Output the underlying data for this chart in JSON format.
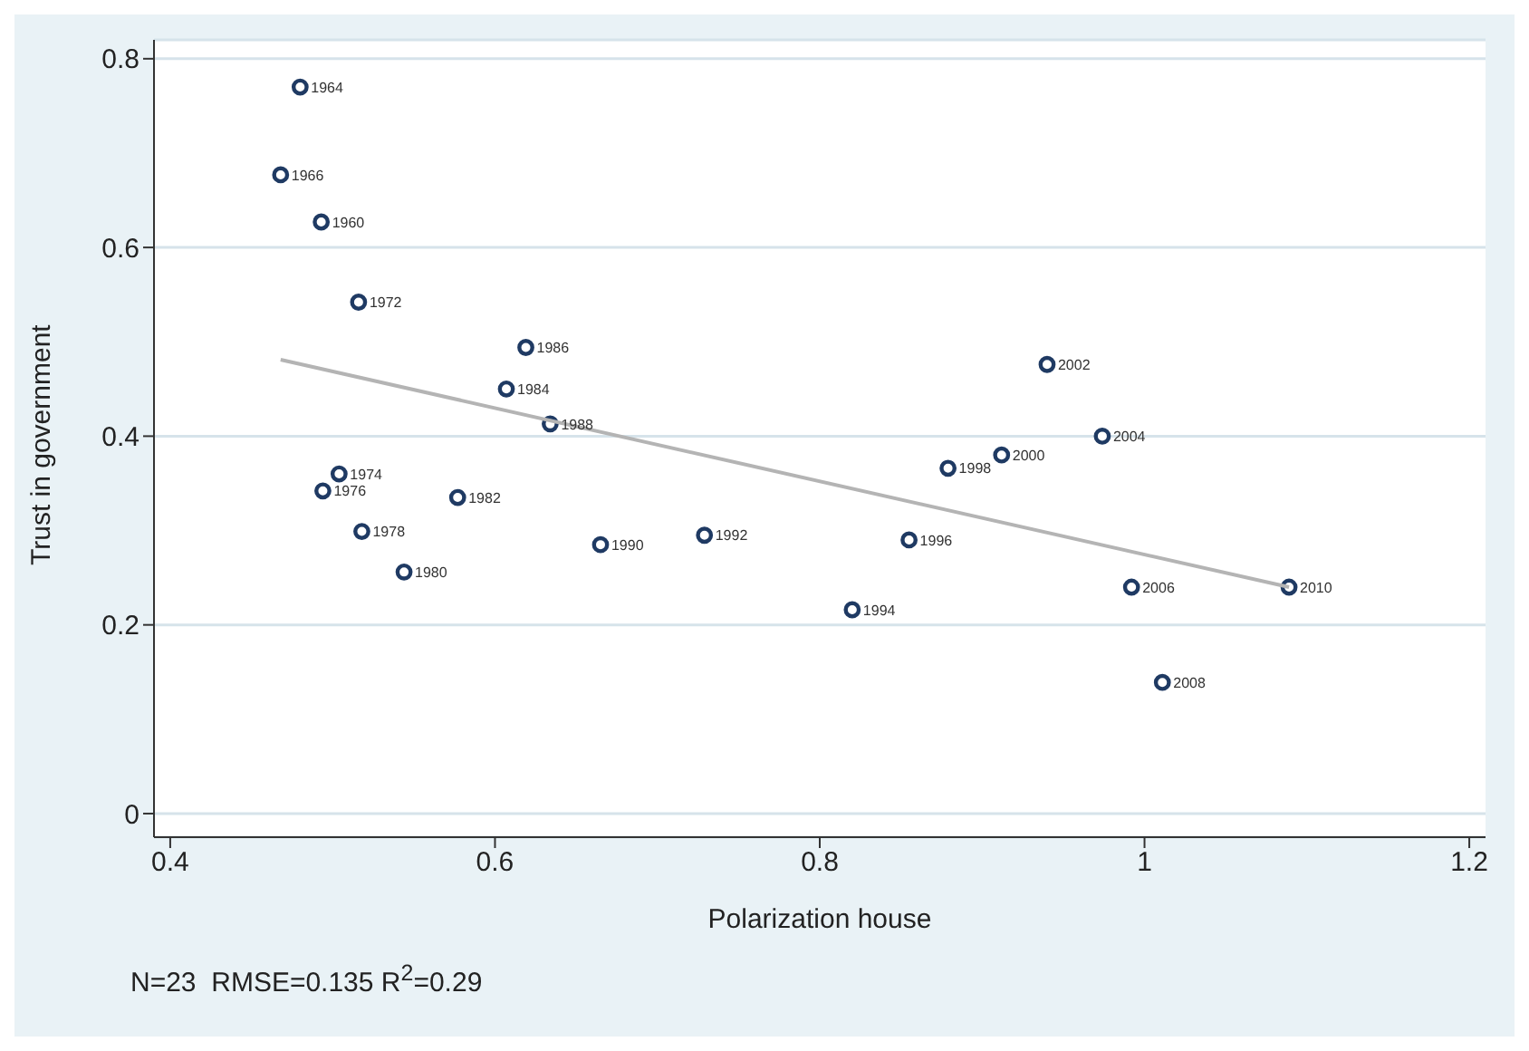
{
  "chart_data": {
    "type": "scatter",
    "xlabel": "Polarization house",
    "ylabel": "Trust in government",
    "xlim": [
      0.39,
      1.21
    ],
    "xticks": [
      0.4,
      0.6,
      0.8,
      1,
      1.2
    ],
    "ylim": [
      -0.025,
      0.82
    ],
    "yticks": [
      0,
      0.2,
      0.4,
      0.6,
      0.8
    ],
    "grid": "y",
    "marker": "circle",
    "series": [
      {
        "color": "#1f3a63",
        "x": [
          0.48,
          0.468,
          0.493,
          0.516,
          0.619,
          0.607,
          0.634,
          0.504,
          0.494,
          0.577,
          0.518,
          0.544,
          0.665,
          0.729,
          0.94,
          0.974,
          0.912,
          0.879,
          0.855,
          0.82,
          0.992,
          1.089,
          1.011
        ],
        "values": [
          0.77,
          0.677,
          0.627,
          0.542,
          0.494,
          0.45,
          0.413,
          0.36,
          0.342,
          0.335,
          0.299,
          0.256,
          0.285,
          0.295,
          0.476,
          0.4,
          0.38,
          0.366,
          0.29,
          0.216,
          0.24,
          0.24,
          0.139
        ]
      },
      {
        "type": "line",
        "color": "#b4b4b4",
        "marker": "none",
        "x": [
          0.468,
          1.089
        ],
        "values": [
          0.481,
          0.24
        ]
      }
    ],
    "annotations": [
      {
        "text": "1964",
        "x": 0.48,
        "y": 0.77
      },
      {
        "text": "1966",
        "x": 0.468,
        "y": 0.677
      },
      {
        "text": "1960",
        "x": 0.493,
        "y": 0.627
      },
      {
        "text": "1972",
        "x": 0.516,
        "y": 0.542
      },
      {
        "text": "1986",
        "x": 0.619,
        "y": 0.494
      },
      {
        "text": "1984",
        "x": 0.607,
        "y": 0.45
      },
      {
        "text": "1988",
        "x": 0.634,
        "y": 0.413
      },
      {
        "text": "1974",
        "x": 0.504,
        "y": 0.36
      },
      {
        "text": "1976",
        "x": 0.494,
        "y": 0.342
      },
      {
        "text": "1982",
        "x": 0.577,
        "y": 0.335
      },
      {
        "text": "1978",
        "x": 0.518,
        "y": 0.299
      },
      {
        "text": "1980",
        "x": 0.544,
        "y": 0.256
      },
      {
        "text": "1990",
        "x": 0.665,
        "y": 0.285
      },
      {
        "text": "1992",
        "x": 0.729,
        "y": 0.295
      },
      {
        "text": "2002",
        "x": 0.94,
        "y": 0.476
      },
      {
        "text": "2004",
        "x": 0.974,
        "y": 0.4
      },
      {
        "text": "2000",
        "x": 0.912,
        "y": 0.38
      },
      {
        "text": "1998",
        "x": 0.879,
        "y": 0.366
      },
      {
        "text": "1996",
        "x": 0.855,
        "y": 0.29
      },
      {
        "text": "1994",
        "x": 0.82,
        "y": 0.216
      },
      {
        "text": "2006",
        "x": 0.992,
        "y": 0.24
      },
      {
        "text": "2010",
        "x": 1.089,
        "y": 0.24
      },
      {
        "text": "2008",
        "x": 1.011,
        "y": 0.139
      },
      "N=23  RMSE=0.135 R$^{2}$=0.29"
    ]
  }
}
